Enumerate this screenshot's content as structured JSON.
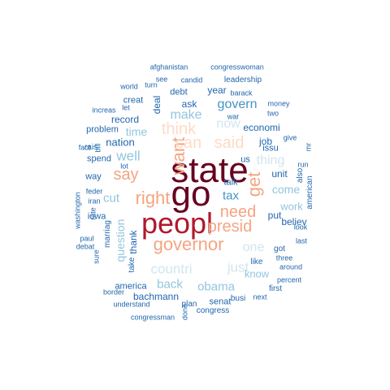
{
  "palette": {
    "darkest": "#67001f",
    "red": "#b2182b",
    "salmon": "#f4a582",
    "peach": "#fddbc7",
    "pale_blue": "#d1e5f0",
    "light_blue": "#92c5de",
    "mid_blue": "#4393c3",
    "dark_blue": "#2166ac",
    "navy": "#053061"
  },
  "words": [
    {
      "text": "state",
      "tone": "darkest"
    },
    {
      "text": "go",
      "tone": "darkest"
    },
    {
      "text": "peopl",
      "tone": "red"
    },
    {
      "text": "governor",
      "tone": "salmon"
    },
    {
      "text": "right",
      "tone": "salmon"
    },
    {
      "text": "want",
      "tone": "salmon"
    },
    {
      "text": "say",
      "tone": "salmon"
    },
    {
      "text": "presid",
      "tone": "salmon"
    },
    {
      "text": "get",
      "tone": "salmon"
    },
    {
      "text": "need",
      "tone": "salmon"
    },
    {
      "text": "can",
      "tone": "peach"
    },
    {
      "text": "said",
      "tone": "peach"
    },
    {
      "text": "think",
      "tone": "peach"
    },
    {
      "text": "countri",
      "tone": "pale_blue"
    },
    {
      "text": "just",
      "tone": "pale_blue"
    },
    {
      "text": "one",
      "tone": "pale_blue"
    },
    {
      "text": "now",
      "tone": "pale_blue"
    },
    {
      "text": "thing",
      "tone": "pale_blue"
    },
    {
      "text": "make",
      "tone": "light_blue"
    },
    {
      "text": "well",
      "tone": "light_blue"
    },
    {
      "text": "cut",
      "tone": "light_blue"
    },
    {
      "text": "back",
      "tone": "light_blue"
    },
    {
      "text": "obama",
      "tone": "light_blue"
    },
    {
      "text": "know",
      "tone": "light_blue"
    },
    {
      "text": "come",
      "tone": "light_blue"
    },
    {
      "text": "work",
      "tone": "light_blue"
    },
    {
      "text": "question",
      "tone": "light_blue"
    },
    {
      "text": "time",
      "tone": "light_blue"
    },
    {
      "text": "govern",
      "tone": "mid_blue"
    },
    {
      "text": "tax",
      "tone": "mid_blue"
    },
    {
      "text": "economi",
      "tone": "dark_blue"
    },
    {
      "text": "nation",
      "tone": "dark_blue"
    },
    {
      "text": "record",
      "tone": "dark_blue"
    },
    {
      "text": "ask",
      "tone": "dark_blue"
    },
    {
      "text": "year",
      "tone": "dark_blue"
    },
    {
      "text": "job",
      "tone": "dark_blue"
    },
    {
      "text": "unit",
      "tone": "dark_blue"
    },
    {
      "text": "put",
      "tone": "dark_blue"
    },
    {
      "text": "believ",
      "tone": "dark_blue"
    },
    {
      "text": "bachmann",
      "tone": "dark_blue"
    },
    {
      "text": "america",
      "tone": "dark_blue"
    },
    {
      "text": "thank",
      "tone": "dark_blue"
    },
    {
      "text": "talk",
      "tone": "dark_blue"
    },
    {
      "text": "like",
      "tone": "dark_blue"
    },
    {
      "text": "spend",
      "tone": "dark_blue"
    },
    {
      "text": "problem",
      "tone": "dark_blue"
    },
    {
      "text": "way",
      "tone": "dark_blue"
    },
    {
      "text": "iowa",
      "tone": "dark_blue"
    },
    {
      "text": "deal",
      "tone": "dark_blue"
    },
    {
      "text": "creat",
      "tone": "dark_blue"
    },
    {
      "text": "debt",
      "tone": "dark_blue"
    },
    {
      "text": "leadership",
      "tone": "dark_blue"
    },
    {
      "text": "us",
      "tone": "dark_blue"
    },
    {
      "text": "issu",
      "tone": "dark_blue"
    },
    {
      "text": "senat",
      "tone": "dark_blue"
    },
    {
      "text": "first",
      "tone": "dark_blue"
    },
    {
      "text": "busi",
      "tone": "dark_blue"
    },
    {
      "text": "congress",
      "tone": "dark_blue"
    },
    {
      "text": "plan",
      "tone": "dark_blue"
    },
    {
      "text": "marriag",
      "tone": "dark_blue"
    },
    {
      "text": "rais",
      "tone": "dark_blue"
    },
    {
      "text": "american",
      "tone": "dark_blue"
    },
    {
      "text": "got",
      "tone": "dark_blue"
    },
    {
      "text": "also",
      "tone": "dark_blue"
    },
    {
      "text": "take",
      "tone": "dark_blue"
    },
    {
      "text": "see",
      "tone": "dark_blue"
    },
    {
      "text": "afghanistan",
      "tone": "dark_blue"
    },
    {
      "text": "congresswoman",
      "tone": "dark_blue"
    },
    {
      "text": "candid",
      "tone": "dark_blue"
    },
    {
      "text": "turn",
      "tone": "dark_blue"
    },
    {
      "text": "world",
      "tone": "dark_blue"
    },
    {
      "text": "barack",
      "tone": "dark_blue"
    },
    {
      "text": "two",
      "tone": "dark_blue"
    },
    {
      "text": "money",
      "tone": "dark_blue"
    },
    {
      "text": "war",
      "tone": "dark_blue"
    },
    {
      "text": "increas",
      "tone": "dark_blue"
    },
    {
      "text": "let",
      "tone": "dark_blue"
    },
    {
      "text": "mr",
      "tone": "dark_blue"
    },
    {
      "text": "give",
      "tone": "dark_blue"
    },
    {
      "text": "run",
      "tone": "dark_blue"
    },
    {
      "text": "fact",
      "tone": "dark_blue"
    },
    {
      "text": "bill",
      "tone": "dark_blue"
    },
    {
      "text": "lot",
      "tone": "dark_blue"
    },
    {
      "text": "washington",
      "tone": "dark_blue"
    },
    {
      "text": "rate",
      "tone": "dark_blue"
    },
    {
      "text": "feder",
      "tone": "dark_blue"
    },
    {
      "text": "iran",
      "tone": "dark_blue"
    },
    {
      "text": "paul",
      "tone": "dark_blue"
    },
    {
      "text": "debat",
      "tone": "dark_blue"
    },
    {
      "text": "sure",
      "tone": "dark_blue"
    },
    {
      "text": "look",
      "tone": "dark_blue"
    },
    {
      "text": "last",
      "tone": "dark_blue"
    },
    {
      "text": "three",
      "tone": "dark_blue"
    },
    {
      "text": "around",
      "tone": "dark_blue"
    },
    {
      "text": "percent",
      "tone": "dark_blue"
    },
    {
      "text": "next",
      "tone": "dark_blue"
    },
    {
      "text": "border",
      "tone": "dark_blue"
    },
    {
      "text": "understand",
      "tone": "dark_blue"
    },
    {
      "text": "done",
      "tone": "dark_blue"
    },
    {
      "text": "congressman",
      "tone": "dark_blue"
    }
  ]
}
